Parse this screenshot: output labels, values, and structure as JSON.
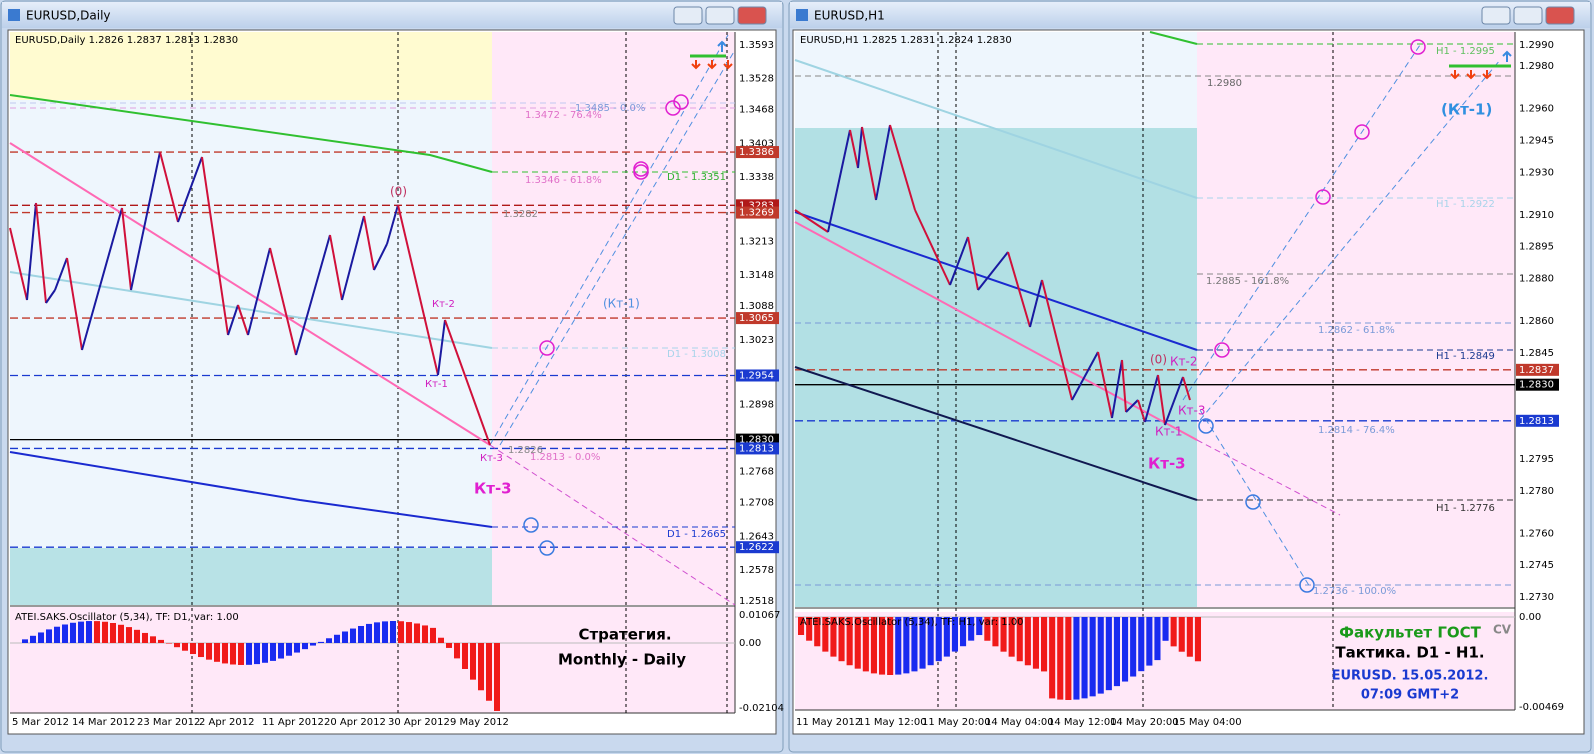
{
  "windows": [
    {
      "title": "EURUSD,Daily",
      "header": "EURUSD,Daily  1.2826 1.2837 1.2813 1.2830",
      "price_ticks": [
        "1.3593",
        "1.3528",
        "1.3468",
        "1.3403",
        "1.3338",
        "1.3213",
        "1.3148",
        "1.3088",
        "1.3023",
        "1.2898",
        "1.2768",
        "1.2708",
        "1.2643",
        "1.2578",
        "1.2518"
      ],
      "price_boxes": [
        {
          "label": "1.3386",
          "color": "#c0392b"
        },
        {
          "label": "1.3283",
          "color": "#b01818"
        },
        {
          "label": "1.3269",
          "color": "#c0392b"
        },
        {
          "label": "1.3065",
          "color": "#c0392b"
        },
        {
          "label": "1.2954",
          "color": "#1a3ad0"
        },
        {
          "label": "1.2830",
          "color": "#000000"
        },
        {
          "label": "1.2813",
          "color": "#1a3ad0"
        },
        {
          "label": "1.2622",
          "color": "#1a3ad0"
        }
      ],
      "dates": [
        "5 Mar 2012",
        "14 Mar 2012",
        "23 Mar 2012",
        "2 Apr 2012",
        "11 Apr 2012",
        "20 Apr 2012",
        "30 Apr 2012",
        "9 May 2012"
      ],
      "annotations": [
        "1.3485 - 0.0%",
        "1.3472 - 76.4%",
        "1.3346 - 61.8%",
        "D1 - 1.3351",
        "1.3282",
        "(0)",
        "Кт-2",
        "Кт-1",
        "(Кт-1)",
        "D1 - 1.3008",
        "1.2826",
        "Кт-3",
        "1.2813 - 0.0%",
        "Кт-3",
        "D1 - 1.2665"
      ],
      "oscillator": {
        "label": "ATEI.SAKS.Oscillator (5,34), TF: D1, var: 1.00",
        "ticks": [
          "0.01067",
          "0.00",
          "-0.02104"
        ]
      },
      "info": [
        "Стратегия.",
        "Monthly - Daily"
      ]
    },
    {
      "title": "EURUSD,H1",
      "header": "EURUSD,H1  1.2825 1.2831 1.2824 1.2830",
      "price_ticks": [
        "1.2990",
        "1.2980",
        "1.2960",
        "1.2945",
        "1.2930",
        "1.2910",
        "1.2895",
        "1.2880",
        "1.2860",
        "1.2845",
        "1.2795",
        "1.2780",
        "1.2760",
        "1.2745",
        "1.2730"
      ],
      "price_boxes": [
        {
          "label": "1.2837",
          "color": "#c0392b"
        },
        {
          "label": "1.2830",
          "color": "#000000"
        },
        {
          "label": "1.2813",
          "color": "#1a3ad0"
        }
      ],
      "dates": [
        "11 May 2012",
        "11 May 12:00",
        "11 May 20:00",
        "14 May 04:00",
        "14 May 12:00",
        "14 May 20:00",
        "15 May 04:00"
      ],
      "annotations": [
        "H1 - 1.2995",
        "1.2980",
        "(Кт-1)",
        "H1 - 1.2922",
        "1.2885 - 161.8%",
        "1.2862 - 61.8%",
        "H1 - 1.2849",
        "(0)",
        "Кт-2",
        "Кт-3",
        "Кт-1",
        "1.2814 - 76.4%",
        "Кт-3",
        "H1 - 1.2776",
        "1.2736 - 100.0%"
      ],
      "oscillator": {
        "label": "ATEI.SAKS.Oscillator (5,34), TF: H1, var: 1.00",
        "ticks": [
          "0.00",
          "-0.00469"
        ]
      },
      "info": [
        "Факультет ГОСТ",
        "CV",
        "Тактика. D1 - H1.",
        "EURUSD. 15.05.2012.",
        "07:09  GMT+2"
      ]
    }
  ]
}
